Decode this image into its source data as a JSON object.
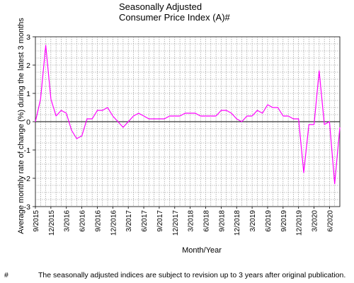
{
  "title_line1": "Seasonally Adjusted",
  "title_line2": "Consumer Price Index (A)#",
  "footnote": {
    "mark": "#",
    "text": "The seasonally adjusted indices are subject to revision up to 3 years after original publication."
  },
  "colors": {
    "series": "#ff00ff",
    "grid": "#888888",
    "axis": "#000000"
  },
  "chart_data": {
    "type": "line",
    "xlabel": "Month/Year",
    "ylabel": "Average monthly rate of change (%) during the latest 3 months",
    "ylim": [
      -3,
      3
    ],
    "yticks": [
      3,
      2,
      1,
      0,
      -1,
      -2,
      -3
    ],
    "grid": true,
    "x": [
      "9/2015",
      "10/2015",
      "11/2015",
      "12/2015",
      "1/2016",
      "2/2016",
      "3/2016",
      "4/2016",
      "5/2016",
      "6/2016",
      "7/2016",
      "8/2016",
      "9/2016",
      "10/2016",
      "11/2016",
      "12/2016",
      "1/2017",
      "2/2017",
      "3/2017",
      "4/2017",
      "5/2017",
      "6/2017",
      "7/2017",
      "8/2017",
      "9/2017",
      "10/2017",
      "11/2017",
      "12/2017",
      "1/2018",
      "2/2018",
      "3/2018",
      "4/2018",
      "5/2018",
      "6/2018",
      "7/2018",
      "8/2018",
      "9/2018",
      "10/2018",
      "11/2018",
      "12/2018",
      "1/2019",
      "2/2019",
      "3/2019",
      "4/2019",
      "5/2019",
      "6/2019",
      "7/2019",
      "8/2019",
      "9/2019",
      "10/2019",
      "11/2019",
      "12/2019",
      "1/2020",
      "2/2020",
      "3/2020",
      "4/2020",
      "5/2020",
      "6/2020",
      "7/2020",
      "8/2020"
    ],
    "xtick_labels": [
      "9/2015",
      "12/2015",
      "3/2016",
      "6/2016",
      "9/2016",
      "12/2016",
      "3/2017",
      "6/2017",
      "9/2017",
      "12/2017",
      "3/2018",
      "6/2018",
      "9/2018",
      "12/2018",
      "3/2019",
      "6/2019",
      "9/2019",
      "12/2019",
      "3/2020",
      "6/2020"
    ],
    "series": [
      {
        "values": [
          0.0,
          0.8,
          2.7,
          0.8,
          0.2,
          0.4,
          0.3,
          -0.3,
          -0.6,
          -0.5,
          0.1,
          0.1,
          0.4,
          0.4,
          0.5,
          0.2,
          0.0,
          -0.2,
          0.0,
          0.2,
          0.3,
          0.2,
          0.1,
          0.1,
          0.1,
          0.1,
          0.2,
          0.2,
          0.2,
          0.3,
          0.3,
          0.3,
          0.2,
          0.2,
          0.2,
          0.2,
          0.4,
          0.4,
          0.3,
          0.1,
          0.0,
          0.2,
          0.2,
          0.4,
          0.3,
          0.6,
          0.5,
          0.5,
          0.2,
          0.2,
          0.1,
          0.1,
          -1.8,
          -0.1,
          -0.1,
          1.8,
          -0.1,
          0.0,
          -2.2,
          -0.2
        ]
      }
    ]
  }
}
